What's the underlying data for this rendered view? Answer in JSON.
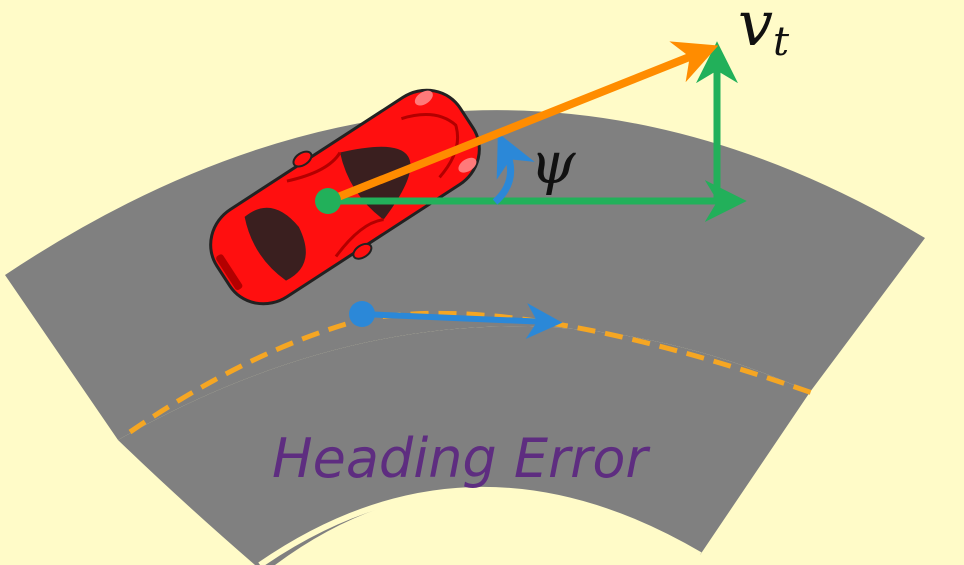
{
  "diagram": {
    "title": "Heading Error",
    "symbols": {
      "velocity": "v",
      "velocity_subscript": "t",
      "heading_angle": "ψ"
    },
    "colors": {
      "background": "#fffbc8",
      "road": "#808080",
      "lane_line": "#f5a623",
      "velocity_arrow": "#ff8c00",
      "component_arrows": "#22b05a",
      "angle_arc": "#2b88d8",
      "path_tangent_arrow": "#2b88d8",
      "car_body": "#ff0f0f",
      "car_glass": "#3a1f1f",
      "title_text": "#5e2d80"
    }
  }
}
